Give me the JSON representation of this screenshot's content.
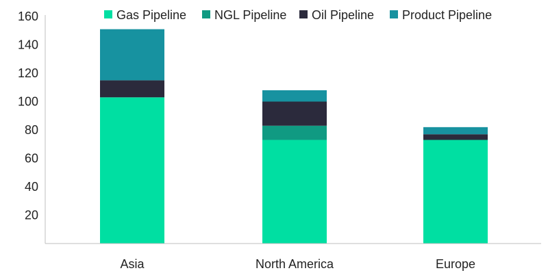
{
  "chart_data": {
    "type": "bar",
    "stacked": true,
    "categories": [
      "Asia",
      "North America",
      "Europe"
    ],
    "series": [
      {
        "name": "Gas Pipeline",
        "values": [
          103,
          73,
          73
        ],
        "color": "#00DFA2"
      },
      {
        "name": "NGL Pipeline",
        "values": [
          0,
          10,
          0
        ],
        "color": "#109A82"
      },
      {
        "name": "Oil Pipeline",
        "values": [
          12,
          17,
          4
        ],
        "color": "#2B2A3C"
      },
      {
        "name": "Product Pipeline",
        "values": [
          36,
          8,
          5
        ],
        "color": "#1792A0"
      }
    ],
    "ylim": [
      0,
      160
    ],
    "yticks": [
      20,
      40,
      60,
      80,
      100,
      120,
      140,
      160
    ],
    "grid": false,
    "legend": "top",
    "title": "",
    "xlabel": "",
    "ylabel": ""
  }
}
